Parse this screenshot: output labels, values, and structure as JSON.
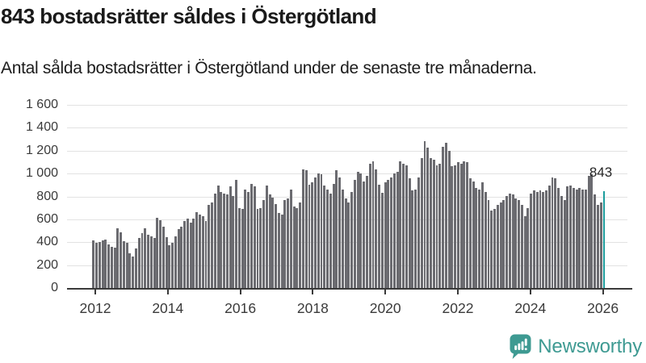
{
  "header": {
    "title": "843 bostadsrätter såldes i Östergötland",
    "subtitle": "Antal sålda bostadsrätter i Östergötland under de senaste tre månaderna."
  },
  "chart_data": {
    "type": "bar",
    "title": "843 bostadsrätter såldes i Östergötland",
    "xlabel": "",
    "ylabel": "",
    "ylim": [
      0,
      1600
    ],
    "grid": true,
    "legend": false,
    "x_frequency": "monthly",
    "x_range_shown": [
      "2012",
      "2026"
    ],
    "yticks": [
      {
        "value": 1600,
        "label": "1 600"
      },
      {
        "value": 1400,
        "label": "1 400"
      },
      {
        "value": 1200,
        "label": "1 200"
      },
      {
        "value": 1000,
        "label": "1 000"
      },
      {
        "value": 800,
        "label": "800"
      },
      {
        "value": 600,
        "label": "600"
      },
      {
        "value": 400,
        "label": "400"
      },
      {
        "value": 200,
        "label": "200"
      },
      {
        "value": 0,
        "label": "0"
      }
    ],
    "xticks": [
      "2012",
      "2014",
      "2016",
      "2018",
      "2020",
      "2022",
      "2024",
      "2026"
    ],
    "values": [
      415,
      395,
      400,
      415,
      425,
      380,
      360,
      350,
      525,
      490,
      410,
      395,
      305,
      275,
      345,
      435,
      480,
      520,
      465,
      450,
      435,
      613,
      595,
      536,
      442,
      372,
      395,
      454,
      512,
      536,
      583,
      606,
      571,
      606,
      665,
      641,
      629,
      583,
      723,
      746,
      828,
      898,
      840,
      828,
      817,
      887,
      805,
      945,
      700,
      688,
      863,
      840,
      910,
      887,
      688,
      700,
      770,
      898,
      817,
      793,
      735,
      653,
      641,
      770,
      781,
      863,
      711,
      700,
      746,
      1039,
      1027,
      900,
      922,
      969,
      1004,
      992,
      898,
      863,
      828,
      910,
      1027,
      969,
      863,
      781,
      746,
      840,
      945,
      1015,
      1004,
      933,
      980,
      1086,
      1109,
      1039,
      900,
      830,
      922,
      945,
      969,
      1004,
      1015,
      1109,
      1086,
      1074,
      957,
      851,
      863,
      969,
      1132,
      1284,
      1225,
      1132,
      1121,
      1074,
      1086,
      1237,
      1272,
      1202,
      1063,
      1074,
      1097,
      1086,
      1109,
      1097,
      957,
      933,
      875,
      863,
      922,
      840,
      770,
      676,
      688,
      723,
      746,
      770,
      805,
      828,
      817,
      781,
      770,
      723,
      629,
      700,
      828,
      851,
      840,
      851,
      840,
      851,
      898,
      969,
      957,
      875,
      805,
      770,
      887,
      898,
      875,
      863,
      875,
      863,
      863,
      980,
      992,
      817,
      723,
      746,
      843
    ],
    "highlight_index": 168,
    "highlight_label": "843",
    "colors": {
      "bar": "#6b6b70",
      "highlight": "#1d9d9d",
      "grid": "#e2e2e2",
      "axis": "#3a3a3a",
      "axis_text": "#3a3a3a",
      "annotation_text": "#262626"
    }
  },
  "footer": {
    "brand": "Newsworthy",
    "brand_color": "#3e9a92"
  }
}
